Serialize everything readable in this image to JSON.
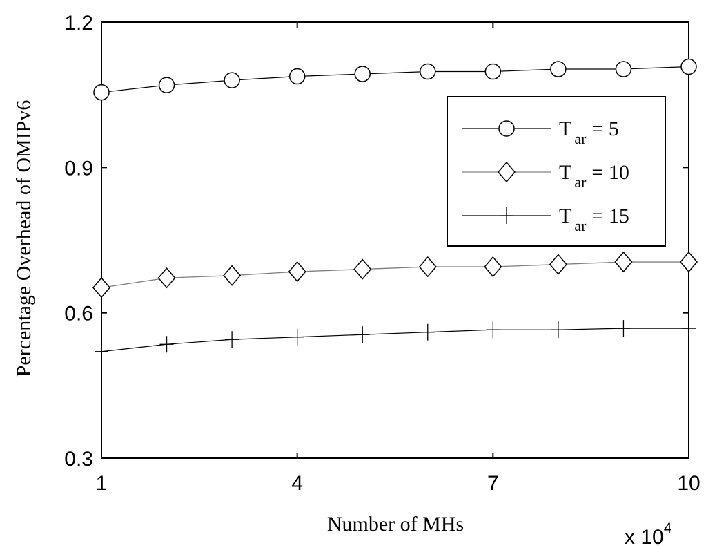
{
  "chart_data": {
    "type": "line",
    "title": "",
    "xlabel": "Number of MHs",
    "ylabel": "Percentage Overhead of OMIPv6",
    "x_multiplier": {
      "base": "x 10",
      "exponent": "4"
    },
    "x": [
      1,
      2,
      3,
      4,
      5,
      6,
      7,
      8,
      9,
      10
    ],
    "xlim": [
      1,
      10
    ],
    "ylim": [
      0.3,
      1.2
    ],
    "xticks": [
      1,
      4,
      7,
      10
    ],
    "xtick_labels": [
      "1",
      "4",
      "7",
      "10"
    ],
    "yticks": [
      0.3,
      0.6,
      0.9,
      1.2
    ],
    "ytick_labels": [
      "0.3",
      "0.6",
      "0.9",
      "1.2"
    ],
    "grid": false,
    "legend_position": "top-right",
    "series": [
      {
        "name": "T_ar = 5",
        "label_main": "T",
        "label_sub": "ar",
        "label_rest": "= 5",
        "marker": "circle",
        "color": "#000000",
        "values": [
          1.055,
          1.07,
          1.08,
          1.088,
          1.093,
          1.098,
          1.098,
          1.103,
          1.103,
          1.108
        ]
      },
      {
        "name": "T_ar = 10",
        "label_main": "T",
        "label_sub": "ar",
        "label_rest": "= 10",
        "marker": "diamond",
        "color": "#808080",
        "values": [
          0.652,
          0.672,
          0.677,
          0.685,
          0.69,
          0.695,
          0.695,
          0.7,
          0.705,
          0.705
        ]
      },
      {
        "name": "T_ar = 15",
        "label_main": "T",
        "label_sub": "ar",
        "label_rest": "= 15",
        "marker": "plus",
        "color": "#000000",
        "values": [
          0.52,
          0.535,
          0.545,
          0.55,
          0.555,
          0.56,
          0.565,
          0.565,
          0.568,
          0.568
        ]
      }
    ]
  }
}
